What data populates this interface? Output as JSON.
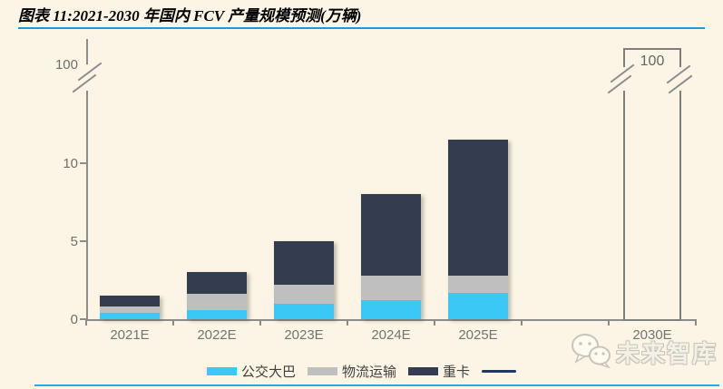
{
  "chart_data": {
    "type": "bar",
    "stacked": true,
    "title": "图表 11:2021-2030 年国内 FCV 产量规模预测(万辆)",
    "categories": [
      "2021E",
      "2022E",
      "2023E",
      "2024E",
      "2025E",
      "2030E"
    ],
    "series": [
      {
        "key": "bus",
        "name": "公交大巴",
        "color": "#3cc8f4",
        "values": [
          0.4,
          0.6,
          1.0,
          1.2,
          1.7,
          null
        ]
      },
      {
        "key": "logistics",
        "name": "物流运输",
        "color": "#bfbfbf",
        "values": [
          0.4,
          1.0,
          1.2,
          1.6,
          1.1,
          null
        ]
      },
      {
        "key": "heavy-truck",
        "name": "重卡",
        "color": "#333d4f",
        "values": [
          0.7,
          1.4,
          2.8,
          5.2,
          8.7,
          null
        ]
      }
    ],
    "totals": [
      1.5,
      3.0,
      5.0,
      8.0,
      11.5,
      100
    ],
    "outline_bar": {
      "category": "2030E",
      "value": 100,
      "label": "100"
    },
    "y_axis": {
      "ticks": [
        "0",
        "5",
        "10"
      ],
      "break_label": "100",
      "has_break": true
    },
    "legend": [
      {
        "key": "bus",
        "type": "box",
        "label": "公交大巴",
        "color": "#3cc8f4"
      },
      {
        "key": "logistics",
        "type": "box",
        "label": "物流运输",
        "color": "#bfbfbf"
      },
      {
        "key": "heavy-truck",
        "type": "box",
        "label": "重卡",
        "color": "#333d4f"
      },
      {
        "key": "trend-line",
        "type": "line",
        "label": "",
        "color": "#1f3864"
      }
    ]
  },
  "watermark": {
    "text": "未来智库"
  },
  "colors": {
    "background": "#fcf5e5",
    "title_underline": "#1e9ad6",
    "bottom_rule": "#29a9e0",
    "axis": "#8c8c8c",
    "tick_label": "#6e6e6e",
    "outline_bar_border": "#7f7f7f"
  }
}
